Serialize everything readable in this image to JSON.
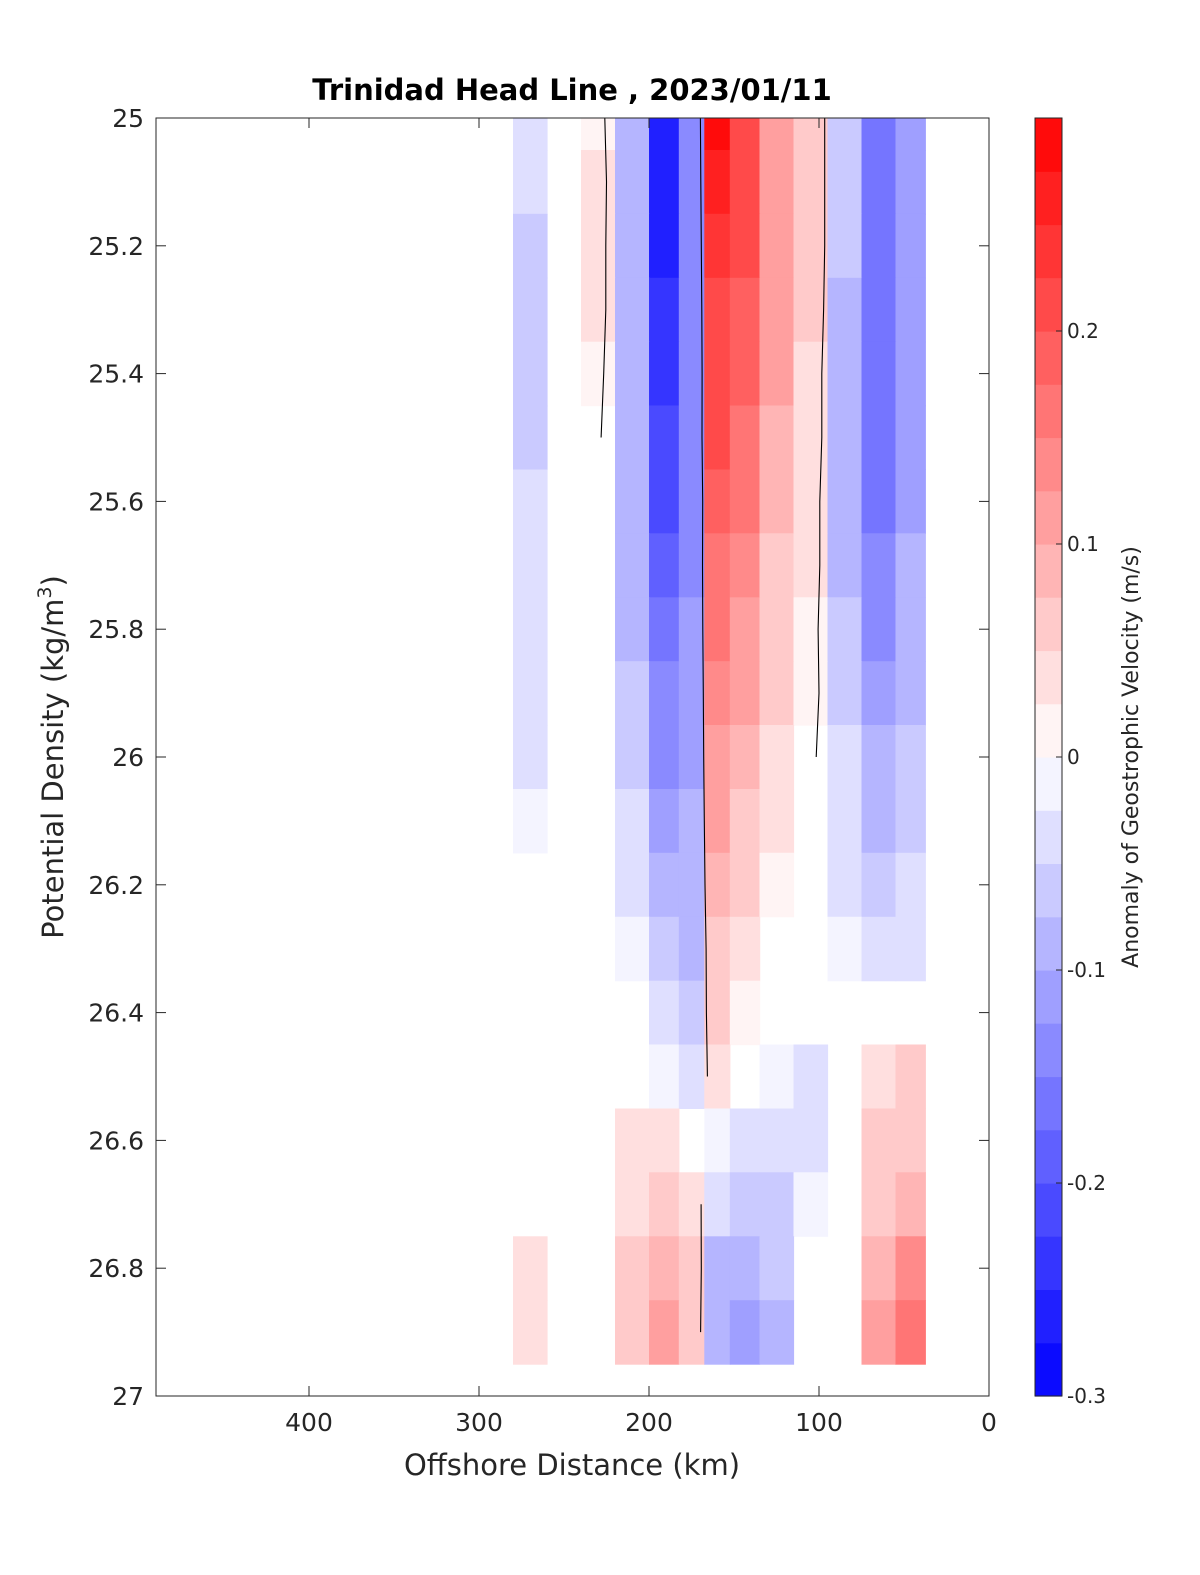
{
  "chart_data": {
    "type": "heatmap",
    "title": "Trinidad Head Line , 2023/01/11",
    "xlabel": "Offshore Distance (km)",
    "ylabel_main": "Potential Density (kg/m",
    "ylabel_sup": "3",
    "ylabel_close": ")",
    "xlim": [
      490,
      0
    ],
    "ylim": [
      27,
      25
    ],
    "x_ticks": [
      400,
      300,
      200,
      100,
      0
    ],
    "x_tick_labels": [
      "400",
      "300",
      "200",
      "100",
      "0"
    ],
    "y_ticks": [
      25,
      25.2,
      25.4,
      25.6,
      25.8,
      26,
      26.2,
      26.4,
      26.6,
      26.8,
      27
    ],
    "y_tick_labels": [
      "25",
      "25.2",
      "25.4",
      "25.6",
      "25.8",
      "26",
      "26.2",
      "26.4",
      "26.6",
      "26.8",
      "27"
    ],
    "colorbar": {
      "label": "Anomaly of Geostrophic Velocity (m/s)",
      "range": [
        -0.3,
        0.3
      ],
      "levels": 24,
      "ticks": [
        -0.3,
        -0.2,
        -0.1,
        0,
        0.1,
        0.2
      ],
      "tick_labels": [
        "-0.3",
        "-0.2",
        "-0.1",
        "0",
        "0.1",
        "0.2"
      ],
      "neg_color": "#0000ff",
      "pos_color": "#ff0000",
      "mid_color": "#ffffff"
    },
    "x": [
      290,
      270,
      250,
      230,
      210,
      190,
      175,
      160,
      145,
      125,
      105,
      85,
      65,
      45,
      30
    ],
    "y": [
      25,
      25.1,
      25.2,
      25.3,
      25.4,
      25.5,
      25.6,
      25.7,
      25.8,
      25.9,
      26,
      26.1,
      26.2,
      26.3,
      26.4,
      26.5,
      26.6,
      26.7,
      26.8,
      26.9
    ],
    "values": [
      [
        0,
        -0.04,
        0,
        0.02,
        -0.08,
        -0.27,
        -0.15,
        0.28,
        0.22,
        0.12,
        0.05,
        -0.07,
        -0.17,
        -0.12,
        0
      ],
      [
        0,
        -0.05,
        0,
        0.03,
        -0.09,
        -0.26,
        -0.15,
        0.26,
        0.21,
        0.12,
        0.05,
        -0.07,
        -0.17,
        -0.12,
        0
      ],
      [
        0,
        -0.06,
        0,
        0.03,
        -0.1,
        -0.25,
        -0.15,
        0.24,
        0.2,
        0.11,
        0.05,
        -0.07,
        -0.17,
        -0.12,
        0
      ],
      [
        0,
        -0.06,
        0,
        0.03,
        -0.1,
        -0.24,
        -0.15,
        0.22,
        0.19,
        0.11,
        0.05,
        -0.08,
        -0.17,
        -0.12,
        0
      ],
      [
        0,
        -0.06,
        0,
        0.02,
        -0.1,
        -0.23,
        -0.15,
        0.21,
        0.18,
        0.1,
        0.04,
        -0.08,
        -0.17,
        -0.12,
        0
      ],
      [
        0,
        -0.06,
        0,
        0.01,
        -0.1,
        -0.22,
        -0.14,
        0.2,
        0.17,
        0.09,
        0.04,
        -0.08,
        -0.17,
        -0.12,
        0
      ],
      [
        0,
        -0.05,
        0,
        0,
        -0.09,
        -0.2,
        -0.14,
        0.18,
        0.15,
        0.08,
        0.03,
        -0.08,
        -0.16,
        -0.11,
        0
      ],
      [
        0,
        -0.05,
        0,
        0,
        -0.09,
        -0.19,
        -0.13,
        0.17,
        0.14,
        0.07,
        0.03,
        -0.08,
        -0.15,
        -0.1,
        0
      ],
      [
        0,
        -0.04,
        0,
        0,
        -0.08,
        -0.17,
        -0.12,
        0.15,
        0.12,
        0.06,
        0.02,
        -0.07,
        -0.14,
        -0.09,
        0
      ],
      [
        0,
        -0.04,
        0,
        0,
        -0.07,
        -0.15,
        -0.12,
        0.14,
        0.1,
        0.05,
        0.02,
        -0.06,
        -0.12,
        -0.08,
        0
      ],
      [
        0,
        -0.03,
        0,
        0,
        -0.06,
        -0.13,
        -0.11,
        0.12,
        0.08,
        0.04,
        0.01,
        -0.05,
        -0.1,
        -0.07,
        0
      ],
      [
        0,
        -0.02,
        0,
        0,
        -0.05,
        -0.11,
        -0.1,
        0.1,
        0.07,
        0.03,
        0,
        -0.04,
        -0.08,
        -0.06,
        0
      ],
      [
        0,
        0,
        0,
        0,
        -0.03,
        -0.09,
        -0.09,
        0.08,
        0.05,
        0.02,
        0,
        -0.03,
        -0.06,
        -0.05,
        0
      ],
      [
        0,
        0,
        0,
        0,
        -0.02,
        -0.07,
        -0.08,
        0.06,
        0.04,
        0.01,
        0,
        -0.02,
        -0.04,
        -0.03,
        0
      ],
      [
        0,
        0,
        0,
        0,
        0,
        -0.05,
        -0.07,
        0.05,
        0.02,
        0,
        0,
        0,
        0,
        0,
        0
      ],
      [
        0,
        0,
        0,
        0,
        0.01,
        -0.02,
        -0.05,
        0.03,
        0,
        -0.02,
        -0.03,
        0,
        0.04,
        0.05,
        0
      ],
      [
        0,
        0,
        0,
        0,
        0.03,
        0.03,
        0,
        -0.02,
        -0.03,
        -0.04,
        -0.03,
        0,
        0.05,
        0.07,
        0
      ],
      [
        0,
        0,
        0,
        0,
        0.04,
        0.06,
        0.03,
        -0.05,
        -0.06,
        -0.06,
        -0.02,
        0,
        0.07,
        0.09,
        0
      ],
      [
        0,
        0.03,
        0,
        0,
        0.05,
        0.08,
        0.05,
        -0.08,
        -0.09,
        -0.07,
        0,
        0,
        0.09,
        0.13,
        0
      ],
      [
        0,
        0.04,
        0,
        0,
        0.06,
        0.1,
        0.05,
        -0.09,
        -0.11,
        -0.1,
        0,
        0,
        0.1,
        0.16,
        0
      ]
    ]
  }
}
